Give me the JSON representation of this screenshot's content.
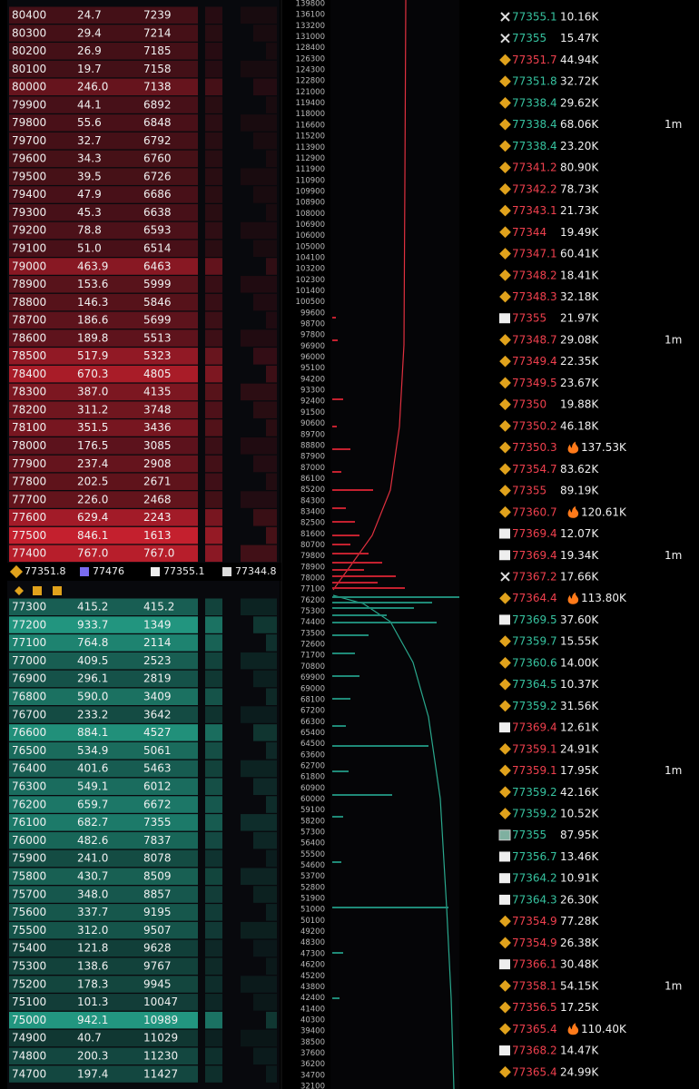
{
  "order_book": {
    "asks": [
      [
        "80400",
        "24.7",
        "7239"
      ],
      [
        "80300",
        "29.4",
        "7214"
      ],
      [
        "80200",
        "26.9",
        "7185"
      ],
      [
        "80100",
        "19.7",
        "7158"
      ],
      [
        "80000",
        "246.0",
        "7138"
      ],
      [
        "79900",
        "44.1",
        "6892"
      ],
      [
        "79800",
        "55.6",
        "6848"
      ],
      [
        "79700",
        "32.7",
        "6792"
      ],
      [
        "79600",
        "34.3",
        "6760"
      ],
      [
        "79500",
        "39.5",
        "6726"
      ],
      [
        "79400",
        "47.9",
        "6686"
      ],
      [
        "79300",
        "45.3",
        "6638"
      ],
      [
        "79200",
        "78.8",
        "6593"
      ],
      [
        "79100",
        "51.0",
        "6514"
      ],
      [
        "79000",
        "463.9",
        "6463"
      ],
      [
        "78900",
        "153.6",
        "5999"
      ],
      [
        "78800",
        "146.3",
        "5846"
      ],
      [
        "78700",
        "186.6",
        "5699"
      ],
      [
        "78600",
        "189.8",
        "5513"
      ],
      [
        "78500",
        "517.9",
        "5323"
      ],
      [
        "78400",
        "670.3",
        "4805"
      ],
      [
        "78300",
        "387.0",
        "4135"
      ],
      [
        "78200",
        "311.2",
        "3748"
      ],
      [
        "78100",
        "351.5",
        "3436"
      ],
      [
        "78000",
        "176.5",
        "3085"
      ],
      [
        "77900",
        "237.4",
        "2908"
      ],
      [
        "77800",
        "202.5",
        "2671"
      ],
      [
        "77700",
        "226.0",
        "2468"
      ],
      [
        "77600",
        "629.4",
        "2243"
      ],
      [
        "77500",
        "846.1",
        "1613"
      ],
      [
        "77400",
        "767.0",
        "767.0"
      ]
    ],
    "bids": [
      [
        "77300",
        "415.2",
        "415.2"
      ],
      [
        "77200",
        "933.7",
        "1349"
      ],
      [
        "77100",
        "764.8",
        "2114"
      ],
      [
        "77000",
        "409.5",
        "2523"
      ],
      [
        "76900",
        "296.1",
        "2819"
      ],
      [
        "76800",
        "590.0",
        "3409"
      ],
      [
        "76700",
        "233.2",
        "3642"
      ],
      [
        "76600",
        "884.1",
        "4527"
      ],
      [
        "76500",
        "534.9",
        "5061"
      ],
      [
        "76400",
        "401.6",
        "5463"
      ],
      [
        "76300",
        "549.1",
        "6012"
      ],
      [
        "76200",
        "659.7",
        "6672"
      ],
      [
        "76100",
        "682.7",
        "7355"
      ],
      [
        "76000",
        "482.6",
        "7837"
      ],
      [
        "75900",
        "241.0",
        "8078"
      ],
      [
        "75800",
        "430.7",
        "8509"
      ],
      [
        "75700",
        "348.0",
        "8857"
      ],
      [
        "75600",
        "337.7",
        "9195"
      ],
      [
        "75500",
        "312.0",
        "9507"
      ],
      [
        "75400",
        "121.8",
        "9628"
      ],
      [
        "75300",
        "138.6",
        "9767"
      ],
      [
        "75200",
        "178.3",
        "9945"
      ],
      [
        "75100",
        "101.3",
        "10047"
      ],
      [
        "75000",
        "942.1",
        "10989"
      ],
      [
        "74900",
        "40.7",
        "11029"
      ],
      [
        "74800",
        "200.3",
        "11230"
      ],
      [
        "74700",
        "197.4",
        "11427"
      ]
    ],
    "ticker": [
      "77351.8",
      "77476",
      "77355.1",
      "77344.8"
    ]
  },
  "depth_axis": [
    "139800",
    "136100",
    "133200",
    "131000",
    "128400",
    "126300",
    "124300",
    "122800",
    "121000",
    "119400",
    "118000",
    "116600",
    "115200",
    "113900",
    "112900",
    "111900",
    "110900",
    "109900",
    "108900",
    "108000",
    "106900",
    "106000",
    "105000",
    "104100",
    "103200",
    "102300",
    "101400",
    "100500",
    "99600",
    "98700",
    "97800",
    "96900",
    "96000",
    "95100",
    "94200",
    "93300",
    "92400",
    "91500",
    "90600",
    "89700",
    "88800",
    "87900",
    "87000",
    "86100",
    "85200",
    "84300",
    "83400",
    "82500",
    "81600",
    "80700",
    "79800",
    "78900",
    "78000",
    "77100",
    "76200",
    "75300",
    "74400",
    "73500",
    "72600",
    "71700",
    "70800",
    "69900",
    "69000",
    "68100",
    "67200",
    "66300",
    "65400",
    "64500",
    "63600",
    "62700",
    "61800",
    "60900",
    "60000",
    "59100",
    "58200",
    "57300",
    "56400",
    "55500",
    "54600",
    "53700",
    "52800",
    "51900",
    "51000",
    "50100",
    "49200",
    "48300",
    "47300",
    "46200",
    "45200",
    "43800",
    "42400",
    "41400",
    "40300",
    "39400",
    "38500",
    "37600",
    "36200",
    "34700",
    "32100"
  ],
  "trades": [
    {
      "price": "77355.1",
      "size": "10.16K",
      "side": "buy",
      "icon": "cross"
    },
    {
      "price": "77355",
      "size": "15.47K",
      "side": "buy",
      "icon": "cross"
    },
    {
      "price": "77351.7",
      "size": "44.94K",
      "side": "sell",
      "icon": "diamond"
    },
    {
      "price": "77351.8",
      "size": "32.72K",
      "side": "buy",
      "icon": "diamond"
    },
    {
      "price": "77338.4",
      "size": "29.62K",
      "side": "buy",
      "icon": "diamond"
    },
    {
      "price": "77338.4",
      "size": "68.06K",
      "side": "buy",
      "icon": "diamond",
      "tag": "1m"
    },
    {
      "price": "77338.4",
      "size": "23.20K",
      "side": "buy",
      "icon": "diamond"
    },
    {
      "price": "77341.2",
      "size": "80.90K",
      "side": "sell",
      "icon": "diamond"
    },
    {
      "price": "77342.2",
      "size": "78.73K",
      "side": "sell",
      "icon": "diamond"
    },
    {
      "price": "77343.1",
      "size": "21.73K",
      "side": "sell",
      "icon": "diamond"
    },
    {
      "price": "77344",
      "size": "19.49K",
      "side": "sell",
      "icon": "diamond"
    },
    {
      "price": "77347.1",
      "size": "60.41K",
      "side": "sell",
      "icon": "diamond"
    },
    {
      "price": "77348.2",
      "size": "18.41K",
      "side": "sell",
      "icon": "diamond"
    },
    {
      "price": "77348.3",
      "size": "32.18K",
      "side": "sell",
      "icon": "diamond"
    },
    {
      "price": "77355",
      "size": "21.97K",
      "side": "sell",
      "icon": "box"
    },
    {
      "price": "77348.7",
      "size": "29.08K",
      "side": "sell",
      "icon": "diamond",
      "tag": "1m"
    },
    {
      "price": "77349.4",
      "size": "22.35K",
      "side": "sell",
      "icon": "diamond"
    },
    {
      "price": "77349.5",
      "size": "23.67K",
      "side": "sell",
      "icon": "diamond"
    },
    {
      "price": "77350",
      "size": "19.88K",
      "side": "sell",
      "icon": "diamond"
    },
    {
      "price": "77350.2",
      "size": "46.18K",
      "side": "sell",
      "icon": "diamond"
    },
    {
      "price": "77350.3",
      "size": "137.53K",
      "side": "sell",
      "icon": "diamond",
      "hot": true
    },
    {
      "price": "77354.7",
      "size": "83.62K",
      "side": "sell",
      "icon": "diamond"
    },
    {
      "price": "77355",
      "size": "89.19K",
      "side": "sell",
      "icon": "diamond"
    },
    {
      "price": "77360.7",
      "size": "120.61K",
      "side": "sell",
      "icon": "diamond",
      "hot": true
    },
    {
      "price": "77369.4",
      "size": "12.07K",
      "side": "sell",
      "icon": "box"
    },
    {
      "price": "77369.4",
      "size": "19.34K",
      "side": "sell",
      "icon": "box",
      "tag": "1m"
    },
    {
      "price": "77367.2",
      "size": "17.66K",
      "side": "sell",
      "icon": "cross"
    },
    {
      "price": "77364.4",
      "size": "113.80K",
      "side": "sell",
      "icon": "diamond",
      "hot": true
    },
    {
      "price": "77369.5",
      "size": "37.60K",
      "side": "buy",
      "icon": "box"
    },
    {
      "price": "77359.7",
      "size": "15.55K",
      "side": "buy",
      "icon": "diamond"
    },
    {
      "price": "77360.6",
      "size": "14.00K",
      "side": "buy",
      "icon": "diamond"
    },
    {
      "price": "77364.5",
      "size": "10.37K",
      "side": "buy",
      "icon": "diamond"
    },
    {
      "price": "77359.2",
      "size": "31.56K",
      "side": "buy",
      "icon": "diamond"
    },
    {
      "price": "77369.4",
      "size": "12.61K",
      "side": "sell",
      "icon": "box"
    },
    {
      "price": "77359.1",
      "size": "24.91K",
      "side": "sell",
      "icon": "diamond"
    },
    {
      "price": "77359.1",
      "size": "17.95K",
      "side": "sell",
      "icon": "diamond",
      "tag": "1m"
    },
    {
      "price": "77359.2",
      "size": "42.16K",
      "side": "buy",
      "icon": "diamond"
    },
    {
      "price": "77359.2",
      "size": "10.52K",
      "side": "buy",
      "icon": "diamond"
    },
    {
      "price": "77355",
      "size": "87.95K",
      "side": "buy",
      "icon": "image"
    },
    {
      "price": "77356.7",
      "size": "13.46K",
      "side": "buy",
      "icon": "box"
    },
    {
      "price": "77364.2",
      "size": "10.91K",
      "side": "buy",
      "icon": "box"
    },
    {
      "price": "77364.3",
      "size": "26.30K",
      "side": "buy",
      "icon": "box"
    },
    {
      "price": "77354.9",
      "size": "77.28K",
      "side": "sell",
      "icon": "diamond"
    },
    {
      "price": "77354.9",
      "size": "26.38K",
      "side": "sell",
      "icon": "diamond"
    },
    {
      "price": "77366.1",
      "size": "30.48K",
      "side": "sell",
      "icon": "box"
    },
    {
      "price": "77358.1",
      "size": "54.15K",
      "side": "sell",
      "icon": "diamond",
      "tag": "1m"
    },
    {
      "price": "77356.5",
      "size": "17.25K",
      "side": "sell",
      "icon": "diamond"
    },
    {
      "price": "77365.4",
      "size": "110.40K",
      "side": "sell",
      "icon": "diamond",
      "hot": true
    },
    {
      "price": "77368.2",
      "size": "14.47K",
      "side": "sell",
      "icon": "box"
    },
    {
      "price": "77365.4",
      "size": "24.99K",
      "side": "sell",
      "icon": "diamond"
    }
  ]
}
